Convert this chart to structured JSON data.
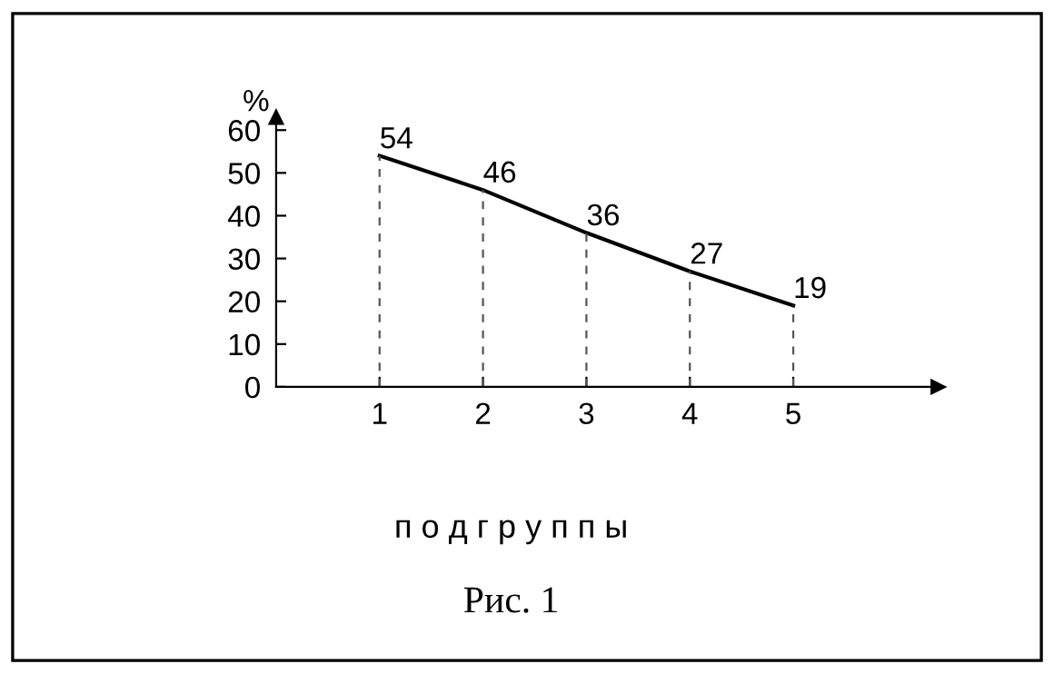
{
  "chart_data": {
    "type": "line",
    "x": [
      1,
      2,
      3,
      4,
      5
    ],
    "values": [
      54,
      46,
      36,
      27,
      19
    ],
    "color": "#000000",
    "data_labels": true,
    "marker": "none",
    "line_style": "solid",
    "grid": "x",
    "xlim": [
      0,
      6.4
    ],
    "xticks": [
      1,
      2,
      3,
      4,
      5
    ],
    "ylim": [
      0,
      63
    ],
    "yticks": [
      0,
      10,
      20,
      30,
      40,
      50,
      60
    ],
    "ylabel": "%",
    "xlabel": "п о д г р у п п ы",
    "annotations": [
      "Рис. 1"
    ]
  }
}
